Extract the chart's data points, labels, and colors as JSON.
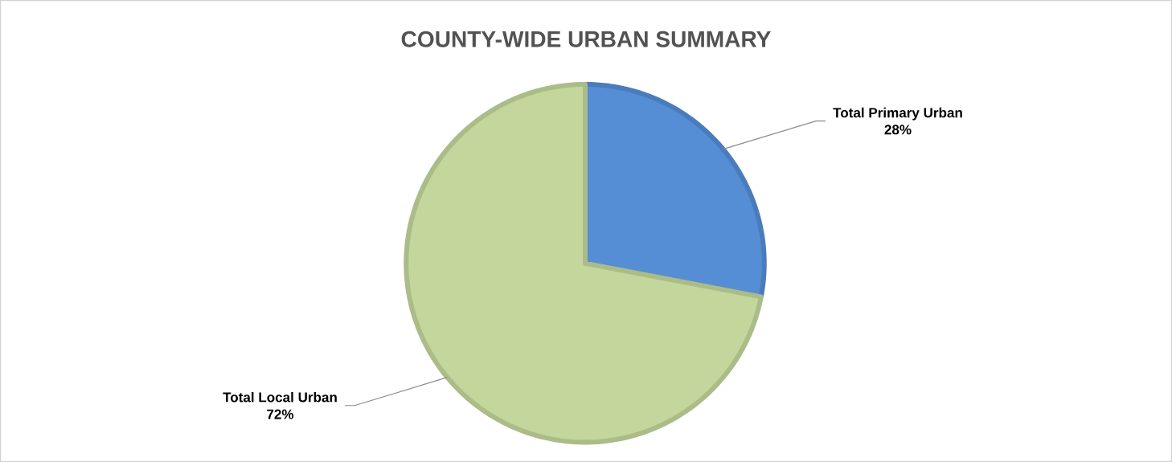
{
  "chart_data": {
    "type": "pie",
    "title": "COUNTY-WIDE URBAN SUMMARY",
    "categories": [
      "Total Primary Urban",
      "Total Local Urban"
    ],
    "values": [
      28,
      72
    ],
    "colors": [
      "#558ed5",
      "#c3d69b"
    ],
    "value_labels": [
      "28%",
      "72%"
    ]
  }
}
